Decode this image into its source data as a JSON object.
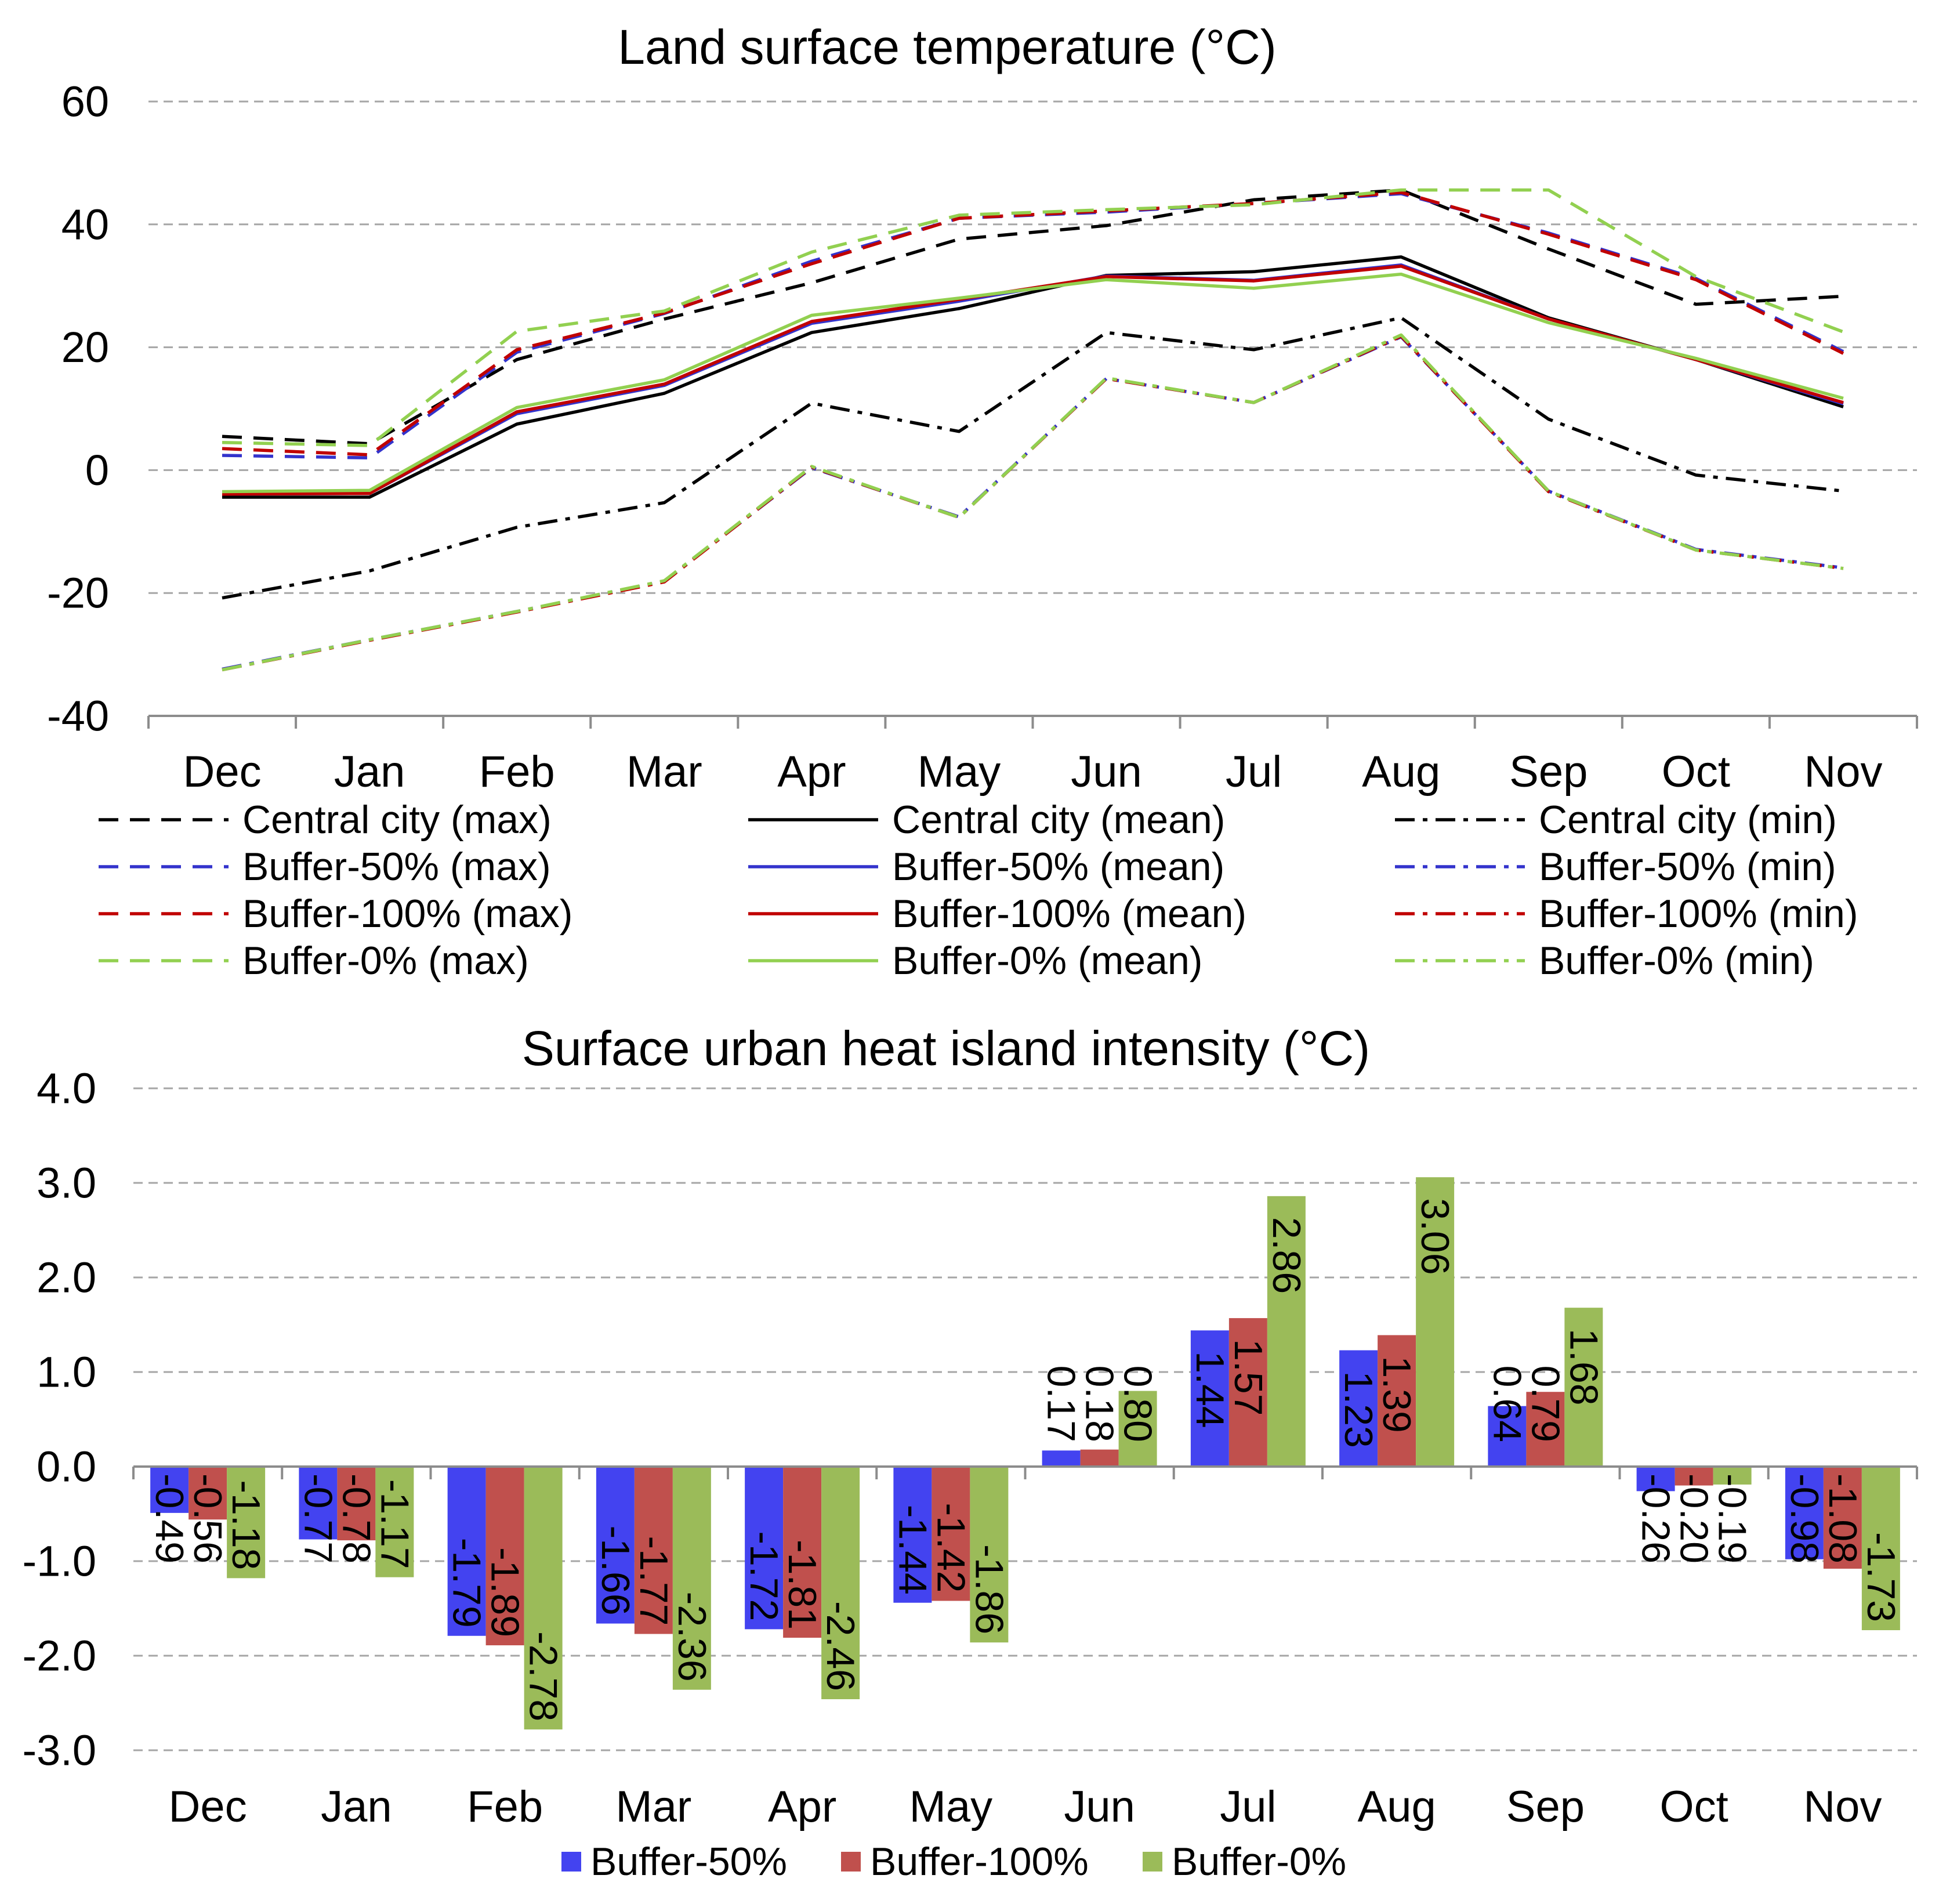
{
  "chart_data": [
    {
      "type": "line",
      "title": "Land surface temperature (°C)",
      "categories": [
        "Dec",
        "Jan",
        "Feb",
        "Mar",
        "Apr",
        "May",
        "Jun",
        "Jul",
        "Aug",
        "Sep",
        "Oct",
        "Nov"
      ],
      "ylim": [
        -40,
        60
      ],
      "yticks": [
        "60",
        "40",
        "20",
        "0",
        "-20",
        "-40"
      ],
      "grid": true,
      "legend_position": "bottom",
      "series": [
        {
          "name": "Central city (max)",
          "color": "#000000",
          "values": [
            5.5,
            4.3,
            18.0,
            24.6,
            30.5,
            37.6,
            39.8,
            44.0,
            45.6,
            36.0,
            27.0,
            28.3
          ]
        },
        {
          "name": "Central city (mean)",
          "color": "#000000",
          "values": [
            -4.4,
            -4.4,
            7.5,
            12.5,
            22.4,
            26.3,
            31.7,
            32.3,
            34.7,
            24.8,
            18.0,
            10.3
          ]
        },
        {
          "name": "Central city (min)",
          "color": "#000000",
          "values": [
            -20.8,
            -16.4,
            -9.3,
            -5.3,
            10.9,
            6.3,
            22.4,
            19.6,
            24.8,
            8.3,
            -0.8,
            -3.4
          ]
        },
        {
          "name": "Buffer-50% (max)",
          "color": "#3333cc",
          "values": [
            2.4,
            2.0,
            19.2,
            25.5,
            34.0,
            41.0,
            42.0,
            43.4,
            45.0,
            38.6,
            31.2,
            19.3
          ]
        },
        {
          "name": "Buffer-50% (mean)",
          "color": "#3333cc",
          "values": [
            -3.9,
            -3.8,
            9.2,
            13.8,
            23.9,
            27.5,
            31.6,
            30.9,
            33.4,
            24.6,
            18.0,
            10.8
          ]
        },
        {
          "name": "Buffer-50% (min)",
          "color": "#3333cc",
          "values": [
            -32.4,
            -27.6,
            -23.0,
            -18.1,
            0.4,
            -7.6,
            14.9,
            11.0,
            21.7,
            -3.4,
            -12.9,
            -15.9
          ]
        },
        {
          "name": "Buffer-100% (max)",
          "color": "#c00000",
          "values": [
            3.5,
            2.5,
            19.6,
            25.6,
            33.6,
            41.0,
            42.2,
            43.4,
            45.2,
            38.4,
            31.0,
            19.0
          ]
        },
        {
          "name": "Buffer-100% (mean)",
          "color": "#c00000",
          "values": [
            -3.9,
            -3.8,
            9.5,
            14.0,
            24.2,
            27.8,
            31.5,
            30.8,
            33.2,
            24.6,
            18.0,
            11.0
          ]
        },
        {
          "name": "Buffer-100% (min)",
          "color": "#c00000",
          "values": [
            -32.5,
            -27.7,
            -23.1,
            -18.2,
            0.5,
            -7.7,
            14.9,
            11.0,
            21.8,
            -3.5,
            -13.0,
            -16.0
          ]
        },
        {
          "name": "Buffer-0% (max)",
          "color": "#92d050",
          "values": [
            4.5,
            4.0,
            22.6,
            25.9,
            35.5,
            41.5,
            42.4,
            43.2,
            45.6,
            45.6,
            31.5,
            22.5
          ]
        },
        {
          "name": "Buffer-0% (mean)",
          "color": "#92d050",
          "values": [
            -3.5,
            -3.3,
            10.2,
            14.7,
            25.2,
            28.0,
            31.0,
            29.6,
            31.9,
            24.0,
            18.2,
            11.7
          ]
        },
        {
          "name": "Buffer-0% (min)",
          "color": "#92d050",
          "values": [
            -32.5,
            -27.6,
            -23.0,
            -18.0,
            0.6,
            -7.7,
            15.0,
            11.0,
            22.0,
            -3.4,
            -13.0,
            -16.0
          ]
        }
      ]
    },
    {
      "type": "bar",
      "title": "Surface urban heat island intensity (°C)",
      "categories": [
        "Dec",
        "Jan",
        "Feb",
        "Mar",
        "Apr",
        "May",
        "Jun",
        "Jul",
        "Aug",
        "Sep",
        "Oct",
        "Nov"
      ],
      "ylim": [
        -3,
        4
      ],
      "yticks": [
        "4.0",
        "3.0",
        "2.0",
        "1.0",
        "0.0",
        "-1.0",
        "-2.0",
        "-3.0"
      ],
      "grid": true,
      "legend_position": "bottom",
      "series": [
        {
          "name": "Buffer-50%",
          "color": "#4343f0",
          "values": [
            -0.49,
            -0.77,
            -1.79,
            -1.66,
            -1.72,
            -1.44,
            0.17,
            1.44,
            1.23,
            0.64,
            -0.26,
            -0.98
          ],
          "labels": [
            "-0.49",
            "-0.77",
            "-1.79",
            "-1.66",
            "-1.72",
            "-1.44",
            "0.17",
            "1.44",
            "1.23",
            "0.64",
            "-0.26",
            "-0.98"
          ]
        },
        {
          "name": "Buffer-100%",
          "color": "#c0504d",
          "values": [
            -0.56,
            -0.78,
            -1.89,
            -1.77,
            -1.81,
            -1.42,
            0.18,
            1.57,
            1.39,
            0.79,
            -0.2,
            -1.08
          ],
          "labels": [
            "-0.56",
            "-0.78",
            "-1.89",
            "-1.77",
            "-1.81",
            "-1.42",
            "0.18",
            "1.57",
            "1.39",
            "0.79",
            "-0.20",
            "-1.08"
          ]
        },
        {
          "name": "Buffer-0%",
          "color": "#9bbb59",
          "values": [
            -1.18,
            -1.17,
            -2.78,
            -2.36,
            -2.46,
            -1.86,
            0.8,
            2.86,
            3.06,
            1.68,
            -0.19,
            -1.73
          ],
          "labels": [
            "-1.18",
            "-1.17",
            "-2.78",
            "-2.36",
            "-2.46",
            "-1.86",
            "0.80",
            "2.86",
            "3.06",
            "1.68",
            "-0.19",
            "-1.73"
          ]
        }
      ]
    }
  ]
}
